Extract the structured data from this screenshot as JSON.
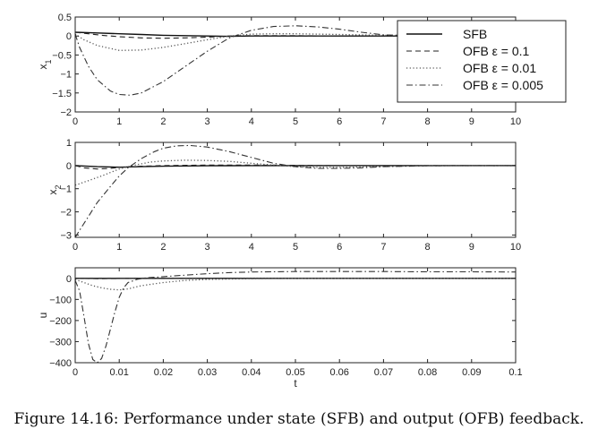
{
  "caption": "Figure 14.16: Performance under state (SFB) and output (OFB) feedback.",
  "legend": [
    {
      "label": "SFB",
      "dash": ""
    },
    {
      "label": "OFB ε = 0.1",
      "dash": "6,4"
    },
    {
      "label": "OFB ε = 0.01",
      "dash": "1.2,2.5"
    },
    {
      "label": "OFB ε = 0.005",
      "dash": "7,3,1.5,3"
    }
  ],
  "chart_data": [
    {
      "type": "line",
      "title": "",
      "xlabel": "",
      "ylabel": "x1",
      "xlim": [
        0,
        10
      ],
      "ylim": [
        -2,
        0.5
      ],
      "xticks": [
        0,
        1,
        2,
        3,
        4,
        5,
        6,
        7,
        8,
        9,
        10
      ],
      "yticks": [
        0.5,
        0,
        -0.5,
        -1,
        -1.5,
        -2
      ],
      "ytick_labels": [
        "0.5",
        "0",
        "-0.5",
        "-1",
        "-1.5",
        "-2"
      ],
      "legend_position": "upper right",
      "grid": false,
      "series": [
        {
          "name": "SFB",
          "x": [
            0,
            0.5,
            1,
            1.5,
            2,
            2.5,
            3,
            3.5,
            4,
            5,
            6,
            7,
            8,
            9,
            10
          ],
          "y": [
            0.1,
            0.08,
            0.06,
            0.04,
            0.02,
            0.01,
            0.0,
            -0.01,
            0.0,
            0.0,
            0.0,
            0.0,
            0.0,
            0.0,
            0.0
          ]
        },
        {
          "name": "OFB ε = 0.1",
          "x": [
            0,
            0.3,
            0.6,
            1,
            1.5,
            2,
            2.5,
            3,
            3.5,
            4,
            5,
            6,
            7,
            8,
            9,
            10
          ],
          "y": [
            0.1,
            0.06,
            0.02,
            -0.02,
            -0.05,
            -0.06,
            -0.05,
            -0.03,
            0.0,
            0.01,
            0.01,
            0.0,
            0.0,
            0.0,
            0.0,
            0.0
          ]
        },
        {
          "name": "OFB ε = 0.01",
          "x": [
            0,
            0.2,
            0.5,
            1,
            1.5,
            2,
            2.5,
            3,
            3.5,
            4,
            4.5,
            5,
            6,
            7,
            8,
            9,
            10
          ],
          "y": [
            0.05,
            -0.1,
            -0.25,
            -0.38,
            -0.37,
            -0.3,
            -0.2,
            -0.1,
            0.0,
            0.05,
            0.06,
            0.06,
            0.04,
            0.02,
            0.01,
            0.0,
            0.0
          ]
        },
        {
          "name": "OFB ε = 0.005",
          "x": [
            0,
            0.1,
            0.3,
            0.5,
            0.8,
            1,
            1.25,
            1.5,
            2,
            2.5,
            3,
            3.5,
            4,
            4.5,
            5,
            5.5,
            6,
            6.5,
            7,
            8,
            9,
            10
          ],
          "y": [
            0.05,
            -0.3,
            -0.8,
            -1.15,
            -1.45,
            -1.54,
            -1.56,
            -1.5,
            -1.2,
            -0.8,
            -0.4,
            -0.05,
            0.15,
            0.25,
            0.27,
            0.24,
            0.18,
            0.1,
            0.03,
            0.0,
            0.0,
            0.0
          ]
        }
      ]
    },
    {
      "type": "line",
      "title": "",
      "xlabel": "",
      "ylabel": "x2",
      "xlim": [
        0,
        10
      ],
      "ylim": [
        -3.1,
        1
      ],
      "xticks": [
        0,
        1,
        2,
        3,
        4,
        5,
        6,
        7,
        8,
        9,
        10
      ],
      "yticks": [
        1,
        0,
        -1,
        -2,
        -3
      ],
      "ytick_labels": [
        "1",
        "0",
        "-1",
        "-2",
        "-3"
      ],
      "grid": false,
      "series": [
        {
          "name": "SFB",
          "x": [
            0,
            0.5,
            1,
            1.5,
            2,
            3,
            4,
            5,
            6,
            7,
            8,
            9,
            10
          ],
          "y": [
            0,
            -0.05,
            -0.07,
            -0.05,
            -0.03,
            -0.01,
            0,
            0,
            0,
            0,
            0,
            0,
            0
          ]
        },
        {
          "name": "OFB ε = 0.1",
          "x": [
            0,
            0.2,
            0.5,
            0.8,
            1,
            1.5,
            2,
            3,
            4,
            5,
            6,
            7,
            8,
            9,
            10
          ],
          "y": [
            0,
            -0.1,
            -0.15,
            -0.12,
            -0.08,
            -0.03,
            0,
            0.02,
            0.02,
            0.01,
            0,
            0,
            0,
            0,
            0
          ]
        },
        {
          "name": "OFB ε = 0.01",
          "x": [
            0,
            0.3,
            0.6,
            1,
            1.3,
            1.7,
            2,
            2.5,
            3,
            3.5,
            4,
            4.5,
            5,
            5.5,
            6,
            7,
            8,
            9,
            10
          ],
          "y": [
            -0.85,
            -0.65,
            -0.45,
            -0.15,
            0.0,
            0.15,
            0.2,
            0.23,
            0.22,
            0.18,
            0.1,
            0.02,
            -0.05,
            -0.08,
            -0.08,
            -0.04,
            -0.01,
            0,
            0
          ]
        },
        {
          "name": "OFB ε = 0.005",
          "x": [
            0,
            0.1,
            0.3,
            0.5,
            0.8,
            1,
            1.2,
            1.5,
            1.8,
            2,
            2.3,
            2.6,
            3,
            3.5,
            4,
            4.5,
            5,
            5.5,
            6,
            6.5,
            7,
            8,
            9,
            10
          ],
          "y": [
            -3.1,
            -2.8,
            -2.2,
            -1.6,
            -0.9,
            -0.45,
            -0.1,
            0.3,
            0.6,
            0.75,
            0.85,
            0.87,
            0.8,
            0.6,
            0.35,
            0.1,
            -0.05,
            -0.12,
            -0.12,
            -0.1,
            -0.05,
            -0.01,
            0,
            0
          ]
        }
      ]
    },
    {
      "type": "line",
      "title": "",
      "xlabel": "t",
      "ylabel": "u",
      "xlim": [
        0,
        0.1
      ],
      "ylim": [
        -400,
        50
      ],
      "xticks": [
        0,
        0.01,
        0.02,
        0.03,
        0.04,
        0.05,
        0.06,
        0.07,
        0.08,
        0.09,
        0.1
      ],
      "xtick_labels": [
        "0",
        "0.01",
        "0.02",
        "0.03",
        "0.04",
        "0.05",
        "0.06",
        "0.07",
        "0.08",
        "0.09",
        "0.1"
      ],
      "yticks": [
        0,
        -100,
        -200,
        -300,
        -400
      ],
      "ytick_labels": [
        "0",
        "-100",
        "-200",
        "-300",
        "-400"
      ],
      "grid": false,
      "series": [
        {
          "name": "SFB",
          "x": [
            0,
            0.1
          ],
          "y": [
            0,
            0
          ]
        },
        {
          "name": "OFB ε = 0.1",
          "x": [
            0,
            0.005,
            0.01,
            0.1
          ],
          "y": [
            0,
            -2,
            -1,
            0
          ]
        },
        {
          "name": "OFB ε = 0.01",
          "x": [
            0,
            0.002,
            0.004,
            0.006,
            0.008,
            0.01,
            0.012,
            0.015,
            0.02,
            0.025,
            0.03,
            0.04,
            0.05,
            0.1
          ],
          "y": [
            -5,
            -20,
            -35,
            -45,
            -52,
            -55,
            -50,
            -35,
            -20,
            -10,
            -5,
            -2,
            0,
            0
          ]
        },
        {
          "name": "OFB ε = 0.005",
          "x": [
            0,
            0.001,
            0.002,
            0.003,
            0.004,
            0.005,
            0.006,
            0.007,
            0.008,
            0.009,
            0.01,
            0.011,
            0.012,
            0.014,
            0.016,
            0.02,
            0.025,
            0.03,
            0.035,
            0.04,
            0.05,
            0.06,
            0.07,
            0.08,
            0.09,
            0.1
          ],
          "y": [
            -10,
            -60,
            -180,
            -310,
            -385,
            -400,
            -380,
            -320,
            -240,
            -160,
            -90,
            -45,
            -20,
            -5,
            2,
            8,
            15,
            22,
            27,
            30,
            32,
            32,
            32,
            31,
            31,
            30
          ]
        }
      ]
    }
  ]
}
